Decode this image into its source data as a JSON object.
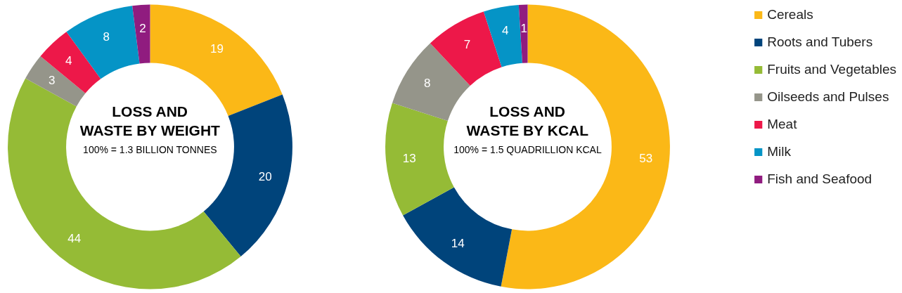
{
  "chart_data": [
    {
      "type": "donut",
      "title": "LOSS AND\nWASTE BY WEIGHT",
      "subtitle": "100% = 1.3 BILLION TONNES",
      "categories": [
        "Cereals",
        "Roots and Tubers",
        "Fruits and Vegetables",
        "Oilseeds and Pulses",
        "Meat",
        "Milk",
        "Fish and Seafood"
      ],
      "values": [
        19,
        20,
        44,
        3,
        4,
        8,
        2
      ],
      "colors": [
        "#fbb817",
        "#00447b",
        "#95bb36",
        "#95958a",
        "#ed1849",
        "#0594c6",
        "#901c7f"
      ],
      "data_labels": true,
      "legend": "right"
    },
    {
      "type": "donut",
      "title": "LOSS AND\nWASTE BY KCAL",
      "subtitle": "100% = 1.5 QUADRILLION KCAL",
      "categories": [
        null,
        null,
        null,
        null,
        null,
        null,
        null
      ],
      "values": [
        53,
        14,
        13,
        8,
        7,
        4,
        1
      ],
      "colors": [
        "#fbb817",
        "#00447b",
        "#95bb36",
        "#95958a",
        "#ed1849",
        "#0594c6",
        "#901c7f"
      ],
      "data_labels": true
    }
  ]
}
